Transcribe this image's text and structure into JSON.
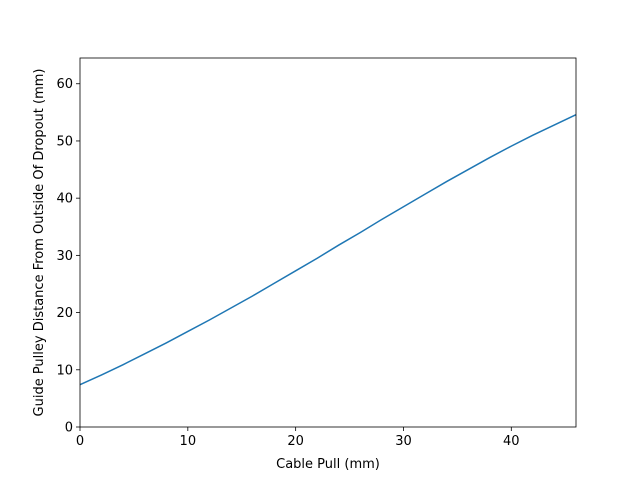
{
  "chart_data": {
    "type": "line",
    "title": "",
    "xlabel": "Cable Pull (mm)",
    "ylabel": "Guide Pulley Distance From Outside Of Dropout (mm)",
    "xlim": [
      0,
      46
    ],
    "ylim": [
      0,
      64.5
    ],
    "xticks": [
      0,
      10,
      20,
      30,
      40
    ],
    "yticks": [
      0,
      10,
      20,
      30,
      40,
      50,
      60
    ],
    "grid": false,
    "line_color": "#1f77b4",
    "series": [
      {
        "x": [
          0,
          2,
          4,
          6,
          8,
          10,
          12,
          14,
          16,
          18,
          20,
          22,
          24,
          26,
          28,
          30,
          32,
          34,
          36,
          38,
          40,
          42,
          44,
          46
        ],
        "y": [
          7.4,
          9.1,
          10.9,
          12.8,
          14.7,
          16.7,
          18.7,
          20.8,
          22.9,
          25.1,
          27.3,
          29.5,
          31.8,
          34.0,
          36.3,
          38.5,
          40.7,
          42.9,
          45.0,
          47.1,
          49.1,
          51.0,
          52.8,
          54.6
        ]
      }
    ]
  }
}
